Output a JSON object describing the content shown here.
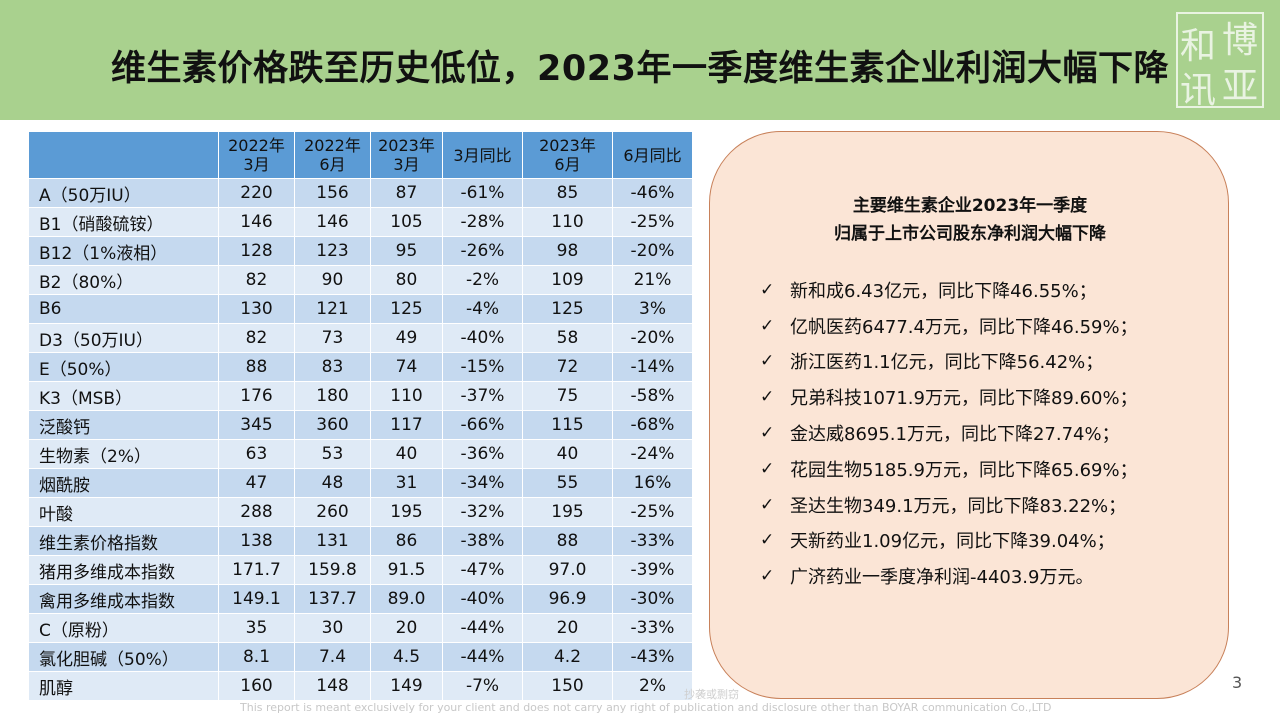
{
  "title": "维生素价格跌至历史低位，2023年一季度维生素企业利润大幅下降",
  "logo_text": "博亚和讯",
  "table": {
    "headers": [
      {
        "l1": "",
        "l2": ""
      },
      {
        "l1": "2022年",
        "l2": "3月"
      },
      {
        "l1": "2022年",
        "l2": "6月"
      },
      {
        "l1": "2023年",
        "l2": "3月"
      },
      {
        "l1": "3月同比",
        "l2": ""
      },
      {
        "l1": "2023年",
        "l2": "6月"
      },
      {
        "l1": "6月同比",
        "l2": ""
      }
    ],
    "rows": [
      [
        "A（50万IU）",
        "220",
        "156",
        "87",
        "-61%",
        "85",
        "-46%"
      ],
      [
        "B1（硝酸硫铵）",
        "146",
        "146",
        "105",
        "-28%",
        "110",
        "-25%"
      ],
      [
        "B12（1%液相）",
        "128",
        "123",
        "95",
        "-26%",
        "98",
        "-20%"
      ],
      [
        "B2（80%）",
        "82",
        "90",
        "80",
        "-2%",
        "109",
        "21%"
      ],
      [
        "B6",
        "130",
        "121",
        "125",
        "-4%",
        "125",
        "3%"
      ],
      [
        "D3（50万IU）",
        "82",
        "73",
        "49",
        "-40%",
        "58",
        "-20%"
      ],
      [
        "E（50%）",
        "88",
        "83",
        "74",
        "-15%",
        "72",
        "-14%"
      ],
      [
        "K3（MSB）",
        "176",
        "180",
        "110",
        "-37%",
        "75",
        "-58%"
      ],
      [
        "泛酸钙",
        "345",
        "360",
        "117",
        "-66%",
        "115",
        "-68%"
      ],
      [
        "生物素（2%）",
        "63",
        "53",
        "40",
        "-36%",
        "40",
        "-24%"
      ],
      [
        "烟酰胺",
        "47",
        "48",
        "31",
        "-34%",
        "55",
        "16%"
      ],
      [
        "叶酸",
        "288",
        "260",
        "195",
        "-32%",
        "195",
        "-25%"
      ],
      [
        "维生素价格指数",
        "138",
        "131",
        "86",
        "-38%",
        "88",
        "-33%"
      ],
      [
        "猪用多维成本指数",
        "171.7",
        "159.8",
        "91.5",
        "-47%",
        "97.0",
        "-39%"
      ],
      [
        "禽用多维成本指数",
        "149.1",
        "137.7",
        "89.0",
        "-40%",
        "96.9",
        "-30%"
      ],
      [
        "C（原粉）",
        "35",
        "30",
        "20",
        "-44%",
        "20",
        "-33%"
      ],
      [
        "氯化胆碱（50%）",
        "8.1",
        "7.4",
        "4.5",
        "-44%",
        "4.2",
        "-43%"
      ],
      [
        "肌醇",
        "160",
        "148",
        "149",
        "-7%",
        "150",
        "2%"
      ]
    ]
  },
  "panel": {
    "title_line1": "主要维生素企业2023年一季度",
    "title_line2": "归属于上市公司股东净利润大幅下降",
    "check": "✓",
    "items": [
      "新和成6.43亿元，同比下降46.55%；",
      "亿帆医药6477.4万元，同比下降46.59%；",
      "浙江医药1.1亿元，同比下降56.42%；",
      "兄弟科技1071.9万元，同比下降89.60%；",
      "金达威8695.1万元，同比下降27.74%；",
      "花园生物5185.9万元，同比下降65.69%；",
      "圣达生物349.1万元，同比下降83.22%；",
      "天新药业1.09亿元，同比下降39.04%；",
      "广济药业一季度净利润-4403.9万元。"
    ]
  },
  "page_number": "3",
  "footer_note": "This report is meant exclusively for your client and does not carry any right of publication and disclosure other than BOYAR communication Co.,LTD",
  "footer_faint": "抄袭或剽窃",
  "colors": {
    "header_bg": "#a9d18e",
    "table_header": "#5b9bd5",
    "row_odd": "#c5d9ef",
    "row_even": "#dfeaf6",
    "panel_bg": "#fbe5d6",
    "panel_border": "#c8815a"
  }
}
